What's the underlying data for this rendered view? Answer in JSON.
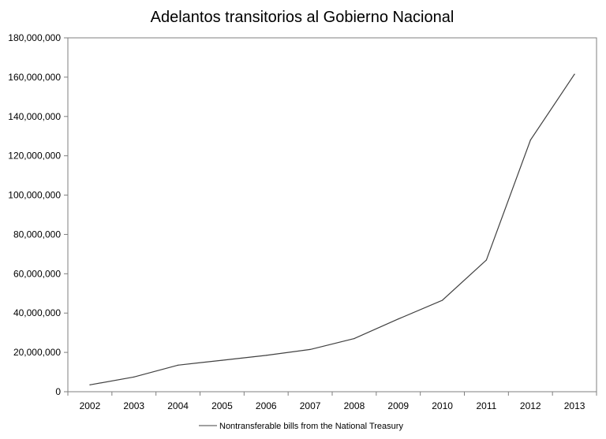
{
  "chart_data": {
    "type": "line",
    "title": "Adelantos transitorios al Gobierno Nacional",
    "xlabel": "",
    "ylabel": "",
    "categories": [
      "2002",
      "2003",
      "2004",
      "2005",
      "2006",
      "2007",
      "2008",
      "2009",
      "2010",
      "2011",
      "2012",
      "2013"
    ],
    "series": [
      {
        "name": "Nontransferable bills from the National Treasury",
        "values": [
          3500000,
          7500000,
          13500000,
          16000000,
          18500000,
          21500000,
          27000000,
          37000000,
          46500000,
          67000000,
          128000000,
          161500000
        ],
        "color": "#404040"
      }
    ],
    "ylim": [
      0,
      180000000
    ],
    "yticks": [
      0,
      20000000,
      40000000,
      60000000,
      80000000,
      100000000,
      120000000,
      140000000,
      160000000,
      180000000
    ],
    "ytick_labels": [
      "0",
      "20,000,000",
      "40,000,000",
      "60,000,000",
      "80,000,000",
      "100,000,000",
      "120,000,000",
      "140,000,000",
      "160,000,000",
      "180,000,000"
    ],
    "grid": false,
    "legend_position": "bottom"
  }
}
